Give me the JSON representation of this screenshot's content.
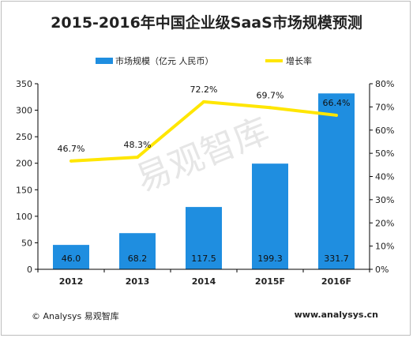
{
  "title": "2015-2016年中国企业级SaaS市场规模预测",
  "watermark": "易观智库",
  "footer": {
    "copyright": "© Analysys 易观智库",
    "website": "www.analysys.cn"
  },
  "colors": {
    "bar": "#1f8ee0",
    "line": "#ffe600",
    "axis": "#000000",
    "text": "#222222",
    "watermark": "#e6e6e6"
  },
  "chart_data": {
    "type": "bar",
    "categories": [
      "2012",
      "2013",
      "2014",
      "2015F",
      "2016F"
    ],
    "series": [
      {
        "name": "市场规模（亿元 人民币）",
        "type": "bar",
        "axis": "left",
        "values": [
          46.0,
          68.2,
          117.5,
          199.3,
          331.7
        ],
        "labels": [
          "46.0",
          "68.2",
          "117.5",
          "199.3",
          "331.7"
        ]
      },
      {
        "name": "增长率",
        "type": "line",
        "axis": "right",
        "values": [
          46.7,
          48.3,
          72.2,
          69.7,
          66.4
        ],
        "labels": [
          "46.7%",
          "48.3%",
          "72.2%",
          "69.7%",
          "66.4%"
        ]
      }
    ],
    "y_left": {
      "min": 0,
      "max": 350,
      "ticks": [
        0,
        50,
        100,
        150,
        200,
        250,
        300,
        350
      ]
    },
    "y_right": {
      "min": 0,
      "max": 80,
      "ticks": [
        "0%",
        "10%",
        "20%",
        "30%",
        "40%",
        "50%",
        "60%",
        "70%",
        "80%"
      ]
    },
    "legend_position": "top",
    "grid": false
  }
}
